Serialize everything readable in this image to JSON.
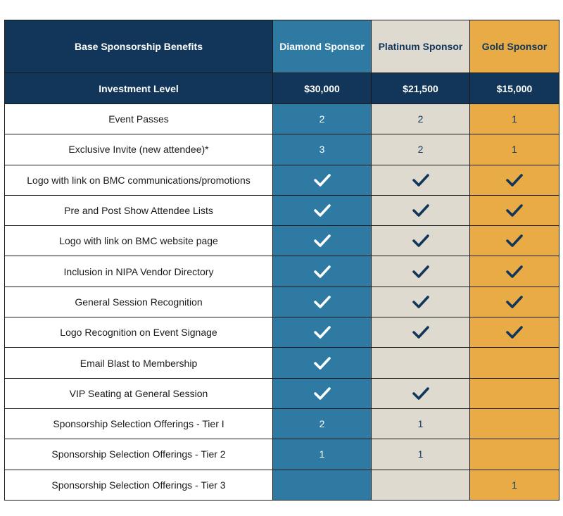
{
  "header": {
    "benefits": "Base Sponsorship Benefits",
    "diamond": "Diamond Sponsor",
    "platinum": "Platinum Sponsor",
    "gold": "Gold Sponsor"
  },
  "investment": {
    "label": "Investment Level",
    "diamond": "$30,000",
    "platinum": "$21,500",
    "gold": "$15,000"
  },
  "colors": {
    "navy": "#12365a",
    "diamond": "#2f7aa3",
    "platinum": "#dedad0",
    "gold": "#e8ab46"
  },
  "check_icon": "checkmark-icon",
  "rows": [
    {
      "benefit": "Event Passes",
      "diamond": "2",
      "platinum": "2",
      "gold": "1"
    },
    {
      "benefit": "Exclusive Invite (new attendee)*",
      "diamond": "3",
      "platinum": "2",
      "gold": "1"
    },
    {
      "benefit": "Logo with link on BMC communications/promotions",
      "diamond": "check",
      "platinum": "check",
      "gold": "check"
    },
    {
      "benefit": "Pre and Post Show Attendee Lists",
      "diamond": "check",
      "platinum": "check",
      "gold": "check"
    },
    {
      "benefit": "Logo with link on BMC website page",
      "diamond": "check",
      "platinum": "check",
      "gold": "check"
    },
    {
      "benefit": "Inclusion in NIPA Vendor Directory",
      "diamond": "check",
      "platinum": "check",
      "gold": "check"
    },
    {
      "benefit": "General Session Recognition",
      "diamond": "check",
      "platinum": "check",
      "gold": "check"
    },
    {
      "benefit": "Logo Recognition on Event Signage",
      "diamond": "check",
      "platinum": "check",
      "gold": "check"
    },
    {
      "benefit": "Email Blast to Membership",
      "diamond": "check",
      "platinum": "",
      "gold": ""
    },
    {
      "benefit": "VIP Seating at General Session",
      "diamond": "check",
      "platinum": "check",
      "gold": ""
    },
    {
      "benefit": "Sponsorship Selection Offerings - Tier I",
      "diamond": "2",
      "platinum": "1",
      "gold": ""
    },
    {
      "benefit": "Sponsorship Selection Offerings - Tier 2",
      "diamond": "1",
      "platinum": "1",
      "gold": ""
    },
    {
      "benefit": "Sponsorship Selection Offerings - Tier 3",
      "diamond": "",
      "platinum": "",
      "gold": "1"
    }
  ]
}
